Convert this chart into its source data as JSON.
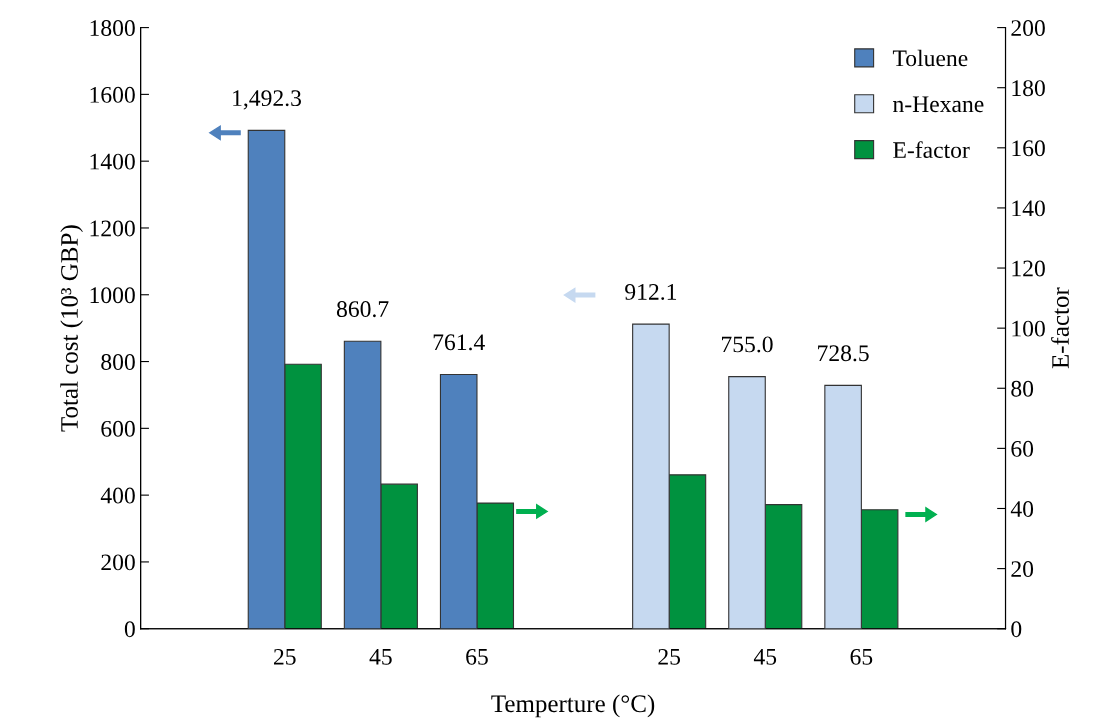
{
  "chart_data": {
    "type": "bar",
    "xlabel": "Temperture (°C)",
    "ylabel": "Total cost (10³ GBP)",
    "y2label": "E-factor",
    "categories": [
      null,
      "25",
      "45",
      "65",
      null,
      "25",
      "45",
      "65",
      null
    ],
    "series": [
      {
        "name": "Toluene",
        "color": "#4f81bd",
        "values": [
          null,
          1492.3,
          860.7,
          761.4,
          null,
          null,
          null,
          null,
          null
        ],
        "value_labels": [
          null,
          "1,492.3",
          "860.7",
          "761.4",
          null,
          null,
          null,
          null,
          null
        ]
      },
      {
        "name": "n-Hexane",
        "color": "#c6d9f0",
        "values": [
          null,
          null,
          null,
          null,
          null,
          912.1,
          755.0,
          728.5,
          null
        ],
        "value_labels": [
          null,
          null,
          null,
          null,
          null,
          "912.1",
          "755.0",
          "728.5",
          null
        ]
      },
      {
        "name": "E-factor",
        "color": "#00923f",
        "axis": "y2",
        "values": [
          null,
          88.0,
          48.1,
          41.8,
          null,
          51.2,
          41.3,
          39.6,
          null
        ]
      }
    ],
    "ylim": [
      0,
      1800
    ],
    "yticks": [
      0,
      200,
      400,
      600,
      800,
      1000,
      1200,
      1400,
      1600,
      1800
    ],
    "y2lim": [
      0,
      200
    ],
    "y2ticks": [
      0,
      20,
      40,
      60,
      80,
      100,
      120,
      140,
      160,
      180,
      200
    ],
    "legend": "top right",
    "grid": false
  }
}
